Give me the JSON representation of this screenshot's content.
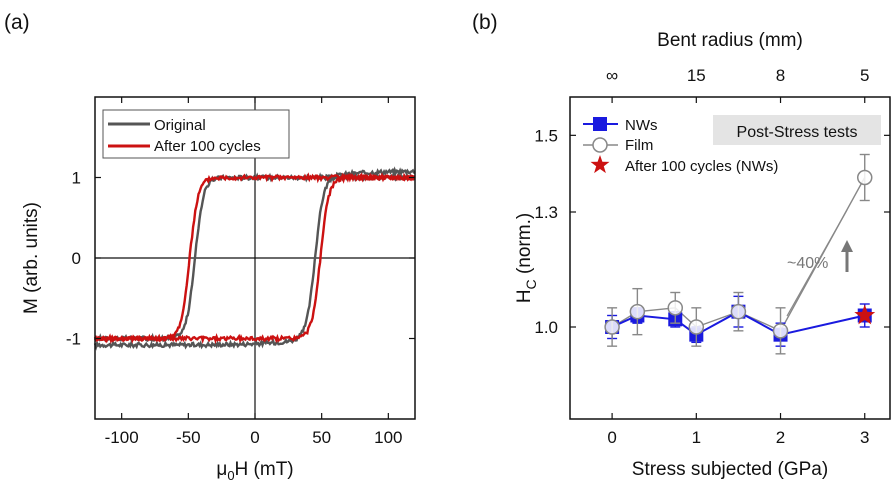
{
  "panel_labels": {
    "a": "(a)",
    "b": "(b)"
  },
  "chart_data": [
    {
      "type": "line",
      "panel": "(a)",
      "xlabel_main": "μ",
      "xlabel_sub": "0",
      "xlabel_rest": "H (mT)",
      "ylabel": "M (arb. units)",
      "xlim": [
        -120,
        120
      ],
      "ylim": [
        -2,
        2
      ],
      "xticks": [
        -100,
        -50,
        0,
        50,
        100
      ],
      "yticks": [
        -1,
        0,
        1
      ],
      "legend_position": "top-left",
      "series": [
        {
          "name": "Original",
          "color": "#555555",
          "saturation": 1.0,
          "coercivity": 45,
          "width": 14
        },
        {
          "name": "After 100 cycles",
          "color": "#cc1111",
          "saturation": 1.0,
          "coercivity": 49,
          "width": 14
        }
      ]
    },
    {
      "type": "scatter",
      "panel": "(b)",
      "xlabel": "Stress subjected (GPa)",
      "ylabel_main": "H",
      "ylabel_sub": "C",
      "ylabel_rest": " (norm.)",
      "top_label": "Bent radius (mm)",
      "xlim": [
        -0.5,
        3.3
      ],
      "ylim": [
        0.76,
        1.6
      ],
      "xticks": [
        0,
        1,
        2,
        3
      ],
      "yticks": [
        1.0,
        1.3,
        1.5
      ],
      "yticklabels": [
        "1.0",
        "1.3",
        "1.5"
      ],
      "top_ticks": [
        {
          "x": 0,
          "label": "∞"
        },
        {
          "x": 1,
          "label": "15"
        },
        {
          "x": 2,
          "label": "8"
        },
        {
          "x": 3,
          "label": "5"
        }
      ],
      "legend_position": "top-left",
      "annotation_box": "Post-Stress tests",
      "annotation_pct": "~40%",
      "series": [
        {
          "name": "NWs",
          "color": "#1a1adf",
          "marker": "square",
          "points": [
            {
              "x": 0,
              "y": 1.0,
              "err": 0.03
            },
            {
              "x": 0.3,
              "y": 1.03,
              "err": 0.02
            },
            {
              "x": 0.75,
              "y": 1.02,
              "err": 0.02
            },
            {
              "x": 1,
              "y": 0.98,
              "err": 0.02
            },
            {
              "x": 1.5,
              "y": 1.04,
              "err": 0.04
            },
            {
              "x": 2,
              "y": 0.98,
              "err": 0.03
            },
            {
              "x": 3,
              "y": 1.03,
              "err": 0.03
            }
          ]
        },
        {
          "name": "Film",
          "color": "#888888",
          "marker": "circle",
          "points": [
            {
              "x": 0,
              "y": 1.0,
              "err": 0.05
            },
            {
              "x": 0.3,
              "y": 1.04,
              "err": 0.06
            },
            {
              "x": 0.75,
              "y": 1.05,
              "err": 0.04
            },
            {
              "x": 1,
              "y": 1.0,
              "err": 0.05
            },
            {
              "x": 1.5,
              "y": 1.04,
              "err": 0.05
            },
            {
              "x": 2,
              "y": 0.99,
              "err": 0.06
            },
            {
              "x": 3,
              "y": 1.39,
              "err": 0.06
            }
          ]
        },
        {
          "name": "After 100 cycles (NWs)",
          "color": "#cc1111",
          "marker": "star",
          "points": [
            {
              "x": 3,
              "y": 1.03,
              "err": 0
            }
          ]
        }
      ]
    }
  ]
}
